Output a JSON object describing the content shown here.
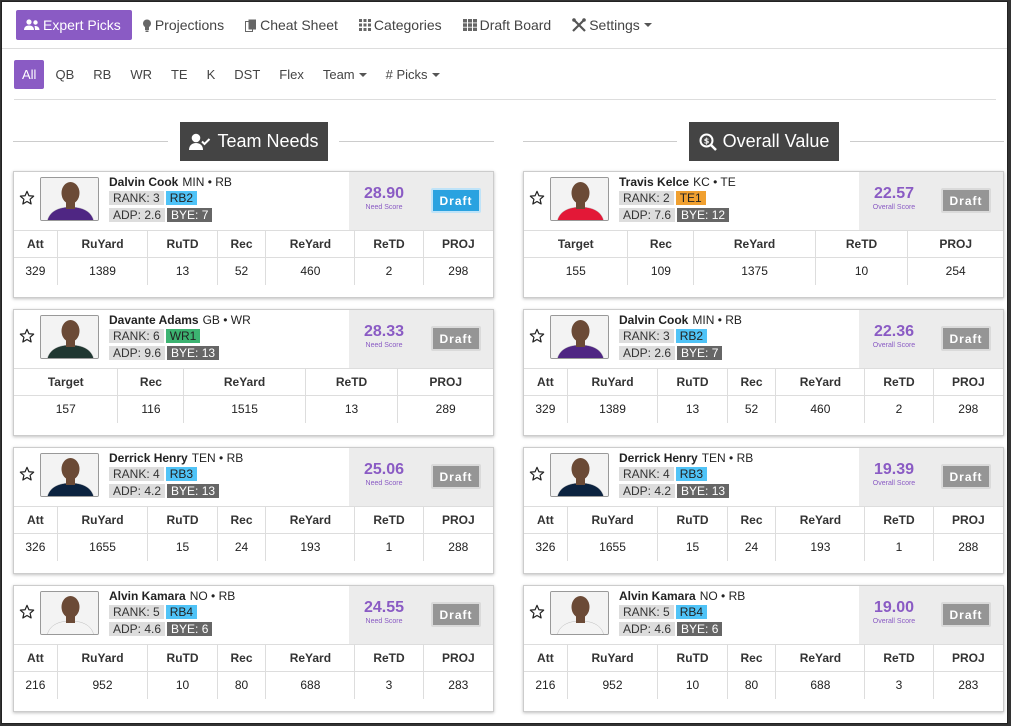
{
  "nav": {
    "items": [
      {
        "label": "Expert Picks",
        "icon": "users-icon",
        "active": true
      },
      {
        "label": "Projections",
        "icon": "lightbulb-icon",
        "active": false
      },
      {
        "label": "Cheat Sheet",
        "icon": "copy-icon",
        "active": false
      },
      {
        "label": "Categories",
        "icon": "grid-icon",
        "active": false
      },
      {
        "label": "Draft Board",
        "icon": "table-icon",
        "active": false
      },
      {
        "label": "Settings",
        "icon": "wrench-icon",
        "active": false,
        "dropdown": true
      }
    ]
  },
  "positions": [
    {
      "label": "All",
      "active": true
    },
    {
      "label": "QB"
    },
    {
      "label": "RB"
    },
    {
      "label": "WR"
    },
    {
      "label": "TE"
    },
    {
      "label": "K"
    },
    {
      "label": "DST"
    },
    {
      "label": "Flex"
    },
    {
      "label": "Team",
      "dropdown": true
    },
    {
      "label": "# Picks",
      "dropdown": true
    }
  ],
  "colors": {
    "accent": "#8a5bc4",
    "draft_active": "#2aa2e0",
    "draft_disabled": "#959595",
    "rb": "#4fc3f7",
    "wr": "#3cb371",
    "te": "#f0a030"
  },
  "team_needs": {
    "title": "Team Needs",
    "score_label": "Need Score",
    "cards": [
      {
        "name": "Dalvin Cook",
        "meta": "MIN • RB",
        "rank": "RANK: 3",
        "pos_rank": "RB2",
        "pos_color": "#4fc3f7",
        "adp": "ADP: 2.6",
        "bye": "BYE: 7",
        "score": "28.90",
        "draft_label": "Draft",
        "draft_active": true,
        "jersey": "#4f2683",
        "columns": [
          "Att",
          "RuYard",
          "RuTD",
          "Rec",
          "ReYard",
          "ReTD",
          "PROJ"
        ],
        "values": [
          "329",
          "1389",
          "13",
          "52",
          "460",
          "2",
          "298"
        ]
      },
      {
        "name": "Davante Adams",
        "meta": "GB • WR",
        "rank": "RANK: 6",
        "pos_rank": "WR1",
        "pos_color": "#3cb371",
        "adp": "ADP: 9.6",
        "bye": "BYE: 13",
        "score": "28.33",
        "draft_label": "Draft",
        "draft_active": false,
        "jersey": "#203731",
        "columns": [
          "Target",
          "Rec",
          "ReYard",
          "ReTD",
          "PROJ"
        ],
        "values": [
          "157",
          "116",
          "1515",
          "13",
          "289"
        ]
      },
      {
        "name": "Derrick Henry",
        "meta": "TEN • RB",
        "rank": "RANK: 4",
        "pos_rank": "RB3",
        "pos_color": "#4fc3f7",
        "adp": "ADP: 4.2",
        "bye": "BYE: 13",
        "score": "25.06",
        "draft_label": "Draft",
        "draft_active": false,
        "jersey": "#0c2340",
        "columns": [
          "Att",
          "RuYard",
          "RuTD",
          "Rec",
          "ReYard",
          "ReTD",
          "PROJ"
        ],
        "values": [
          "326",
          "1655",
          "15",
          "24",
          "193",
          "1",
          "288"
        ]
      },
      {
        "name": "Alvin Kamara",
        "meta": "NO • RB",
        "rank": "RANK: 5",
        "pos_rank": "RB4",
        "pos_color": "#4fc3f7",
        "adp": "ADP: 4.6",
        "bye": "BYE: 6",
        "score": "24.55",
        "draft_label": "Draft",
        "draft_active": false,
        "jersey": "#f4f4f4",
        "columns": [
          "Att",
          "RuYard",
          "RuTD",
          "Rec",
          "ReYard",
          "ReTD",
          "PROJ"
        ],
        "values": [
          "216",
          "952",
          "10",
          "80",
          "688",
          "3",
          "283"
        ]
      }
    ]
  },
  "overall_value": {
    "title": "Overall Value",
    "score_label": "Overall Score",
    "cards": [
      {
        "name": "Travis Kelce",
        "meta": "KC • TE",
        "rank": "RANK: 2",
        "pos_rank": "TE1",
        "pos_color": "#f0a030",
        "adp": "ADP: 7.6",
        "bye": "BYE: 12",
        "score": "22.57",
        "draft_label": "Draft",
        "draft_active": false,
        "jersey": "#e31837",
        "columns": [
          "Target",
          "Rec",
          "ReYard",
          "ReTD",
          "PROJ"
        ],
        "values": [
          "155",
          "109",
          "1375",
          "10",
          "254"
        ]
      },
      {
        "name": "Dalvin Cook",
        "meta": "MIN • RB",
        "rank": "RANK: 3",
        "pos_rank": "RB2",
        "pos_color": "#4fc3f7",
        "adp": "ADP: 2.6",
        "bye": "BYE: 7",
        "score": "22.36",
        "draft_label": "Draft",
        "draft_active": false,
        "jersey": "#4f2683",
        "columns": [
          "Att",
          "RuYard",
          "RuTD",
          "Rec",
          "ReYard",
          "ReTD",
          "PROJ"
        ],
        "values": [
          "329",
          "1389",
          "13",
          "52",
          "460",
          "2",
          "298"
        ]
      },
      {
        "name": "Derrick Henry",
        "meta": "TEN • RB",
        "rank": "RANK: 4",
        "pos_rank": "RB3",
        "pos_color": "#4fc3f7",
        "adp": "ADP: 4.2",
        "bye": "BYE: 13",
        "score": "19.39",
        "draft_label": "Draft",
        "draft_active": false,
        "jersey": "#0c2340",
        "columns": [
          "Att",
          "RuYard",
          "RuTD",
          "Rec",
          "ReYard",
          "ReTD",
          "PROJ"
        ],
        "values": [
          "326",
          "1655",
          "15",
          "24",
          "193",
          "1",
          "288"
        ]
      },
      {
        "name": "Alvin Kamara",
        "meta": "NO • RB",
        "rank": "RANK: 5",
        "pos_rank": "RB4",
        "pos_color": "#4fc3f7",
        "adp": "ADP: 4.6",
        "bye": "BYE: 6",
        "score": "19.00",
        "draft_label": "Draft",
        "draft_active": false,
        "jersey": "#f4f4f4",
        "columns": [
          "Att",
          "RuYard",
          "RuTD",
          "Rec",
          "ReYard",
          "ReTD",
          "PROJ"
        ],
        "values": [
          "216",
          "952",
          "10",
          "80",
          "688",
          "3",
          "283"
        ]
      }
    ]
  }
}
